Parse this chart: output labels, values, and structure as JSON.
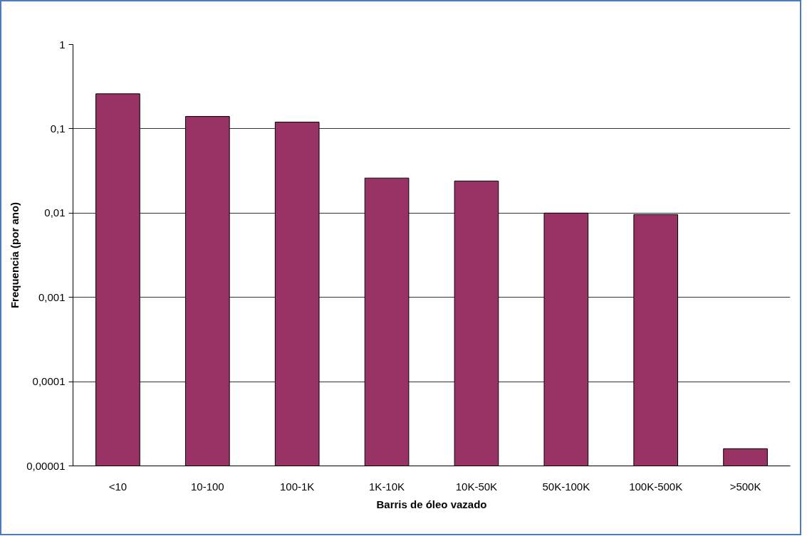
{
  "chart_data": {
    "type": "bar",
    "xlabel": "Barris de óleo vazado",
    "ylabel": "Frequencia (por ano)",
    "categories": [
      "<10",
      "10-100",
      "100-1K",
      "1K-10K",
      "10K-50K",
      "50K-100K",
      "100K-500K",
      ">500K"
    ],
    "values": [
      0.26,
      0.14,
      0.12,
      0.026,
      0.024,
      0.01,
      0.0096,
      1.6e-05
    ],
    "color": "#993366",
    "log": "y",
    "ylim": [
      1e-05,
      1
    ],
    "yticks": [
      {
        "value": 1e-05,
        "label": "0,00001"
      },
      {
        "value": 0.0001,
        "label": "0,0001"
      },
      {
        "value": 0.001,
        "label": "0,001"
      },
      {
        "value": 0.01,
        "label": "0,01"
      },
      {
        "value": 0.1,
        "label": "0,1"
      },
      {
        "value": 1,
        "label": "1"
      }
    ],
    "grid": "y"
  }
}
